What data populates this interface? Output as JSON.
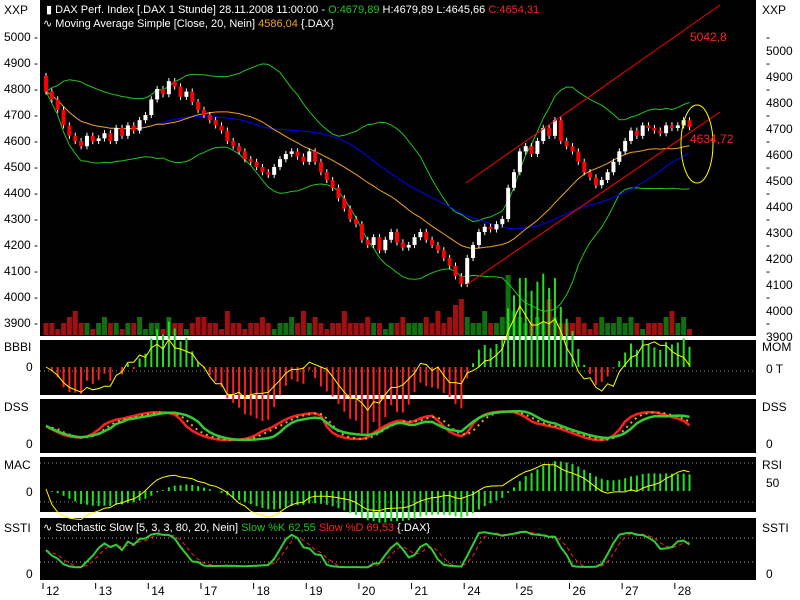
{
  "header": {
    "instrument": "DAX Perf. Index [.DAX  1 Stunde] 28.11.2008 11:00:00 -",
    "open": "O:4679,89",
    "high": "H:4679,89",
    "low": "L:4645,66",
    "close": "C:4654,31",
    "ma_label": "Moving Average Simple [Close, 20, Nein]",
    "ma_value": "4586,04",
    "ma_suffix": "{.DAX}",
    "stoch_label": "Stochastic Slow [5, 3, 3, 80, 20, Nein]",
    "stoch_k": "Slow %K 62,55",
    "stoch_d": "Slow %D 69,53",
    "stoch_suffix": "{.DAX}"
  },
  "panel_labels": {
    "main_left": "XXP",
    "main_right": "XXP",
    "p1_left": "BBBI",
    "p1_right": "MOM",
    "p1_left_zero": "0",
    "p1_right_zero": "0 T",
    "p2_left": "DSS",
    "p2_right": "DSS",
    "p2_left_zero": "0",
    "p2_right_zero": "0",
    "p3_left": "MAC",
    "p3_right": "RSI",
    "p3_left_zero": "0",
    "p3_right_50": "50",
    "p4_left": "SSTI",
    "p4_right": "SSTI",
    "p4_left_zero": "0",
    "p4_right_zero": "0"
  },
  "annotations": {
    "upper_channel": "5042,8",
    "lower_channel": "4634,72"
  },
  "colors": {
    "up": "#ffffff",
    "down": "#ff0000",
    "ma20": "#f0a020",
    "ma40": "#0000ff",
    "bands": "#22c322",
    "channel": "#ff0000",
    "ellipse": "#ffff00",
    "vol_up": "#107010",
    "vol_down": "#a01010"
  },
  "chart_data": {
    "type": "candlestick",
    "title": "DAX Perf. Index [.DAX 1 Stunde]",
    "ylim": [
      3850,
      5100
    ],
    "y_ticks": [
      "5000",
      "4900",
      "4800",
      "4700",
      "4600",
      "4500",
      "4400",
      "4300",
      "4200",
      "4100",
      "4000",
      "3900"
    ],
    "x_ticks": [
      "12",
      "13",
      "14",
      "17",
      "18",
      "19",
      "20",
      "21",
      "24",
      "25",
      "26",
      "27",
      "28"
    ],
    "candles_per_day": 9,
    "first_open": 4850,
    "close": [
      4790,
      4760,
      4720,
      4660,
      4620,
      4600,
      4580,
      4620,
      4600,
      4610,
      4630,
      4600,
      4650,
      4620,
      4660,
      4640,
      4680,
      4700,
      4760,
      4800,
      4780,
      4830,
      4810,
      4770,
      4790,
      4750,
      4720,
      4700,
      4680,
      4660,
      4640,
      4600,
      4580,
      4560,
      4530,
      4520,
      4500,
      4480,
      4470,
      4500,
      4530,
      4550,
      4560,
      4540,
      4520,
      4560,
      4520,
      4480,
      4450,
      4420,
      4380,
      4340,
      4300,
      4280,
      4220,
      4200,
      4230,
      4180,
      4220,
      4250,
      4210,
      4190,
      4200,
      4230,
      4250,
      4220,
      4200,
      4180,
      4150,
      4120,
      4080,
      4050,
      4150,
      4200,
      4250,
      4270,
      4260,
      4280,
      4300,
      4420,
      4480,
      4560,
      4580,
      4550,
      4600,
      4650,
      4620,
      4680,
      4600,
      4580,
      4560,
      4520,
      4480,
      4460,
      4430,
      4450,
      4480,
      4520,
      4560,
      4600,
      4640,
      4620,
      4660,
      4650,
      4640,
      4630,
      4660,
      4650,
      4660,
      4680,
      4654
    ],
    "volume": [
      2,
      2,
      1,
      2,
      3,
      4,
      2,
      2,
      1,
      2,
      3,
      2,
      2,
      1,
      2,
      2,
      3,
      1,
      2,
      2,
      1,
      3,
      2,
      2,
      1,
      2,
      3,
      3,
      2,
      2,
      1,
      4,
      2,
      2,
      1,
      2,
      2,
      3,
      2,
      1,
      2,
      2,
      3,
      2,
      4,
      2,
      3,
      2,
      1,
      2,
      2,
      4,
      2,
      2,
      2,
      3,
      2,
      2,
      1,
      2,
      2,
      3,
      2,
      2,
      2,
      3,
      2,
      4,
      2,
      3,
      5,
      6,
      3,
      2,
      2,
      4,
      2,
      2,
      3,
      10,
      4,
      3,
      2,
      2,
      3,
      2,
      6,
      3,
      2,
      2,
      2,
      3,
      2,
      1,
      2,
      3,
      2,
      2,
      3,
      2,
      3,
      2,
      1,
      2,
      2,
      2,
      3,
      4,
      2,
      3,
      1
    ],
    "upper_channel_value": 5042.8,
    "lower_channel_value": 4634.72,
    "ma_period": 20
  }
}
